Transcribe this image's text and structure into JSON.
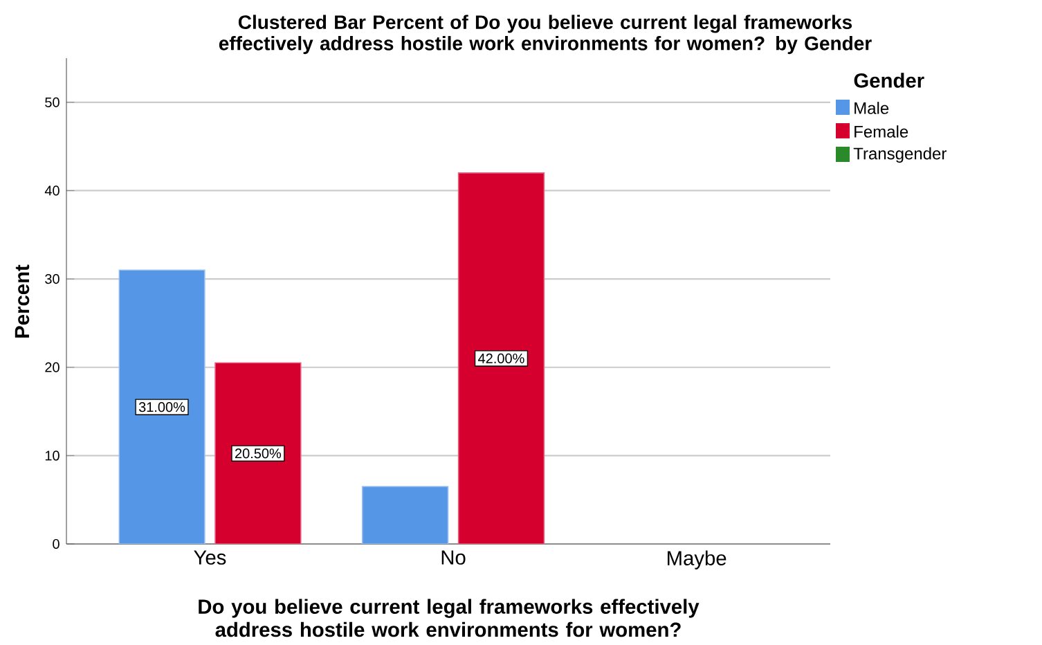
{
  "chart_data": {
    "type": "bar",
    "title": "Clustered Bar Percent of Do you believe current legal frameworks effectively address hostile work environments for women? by Gender",
    "xlabel": "Do you believe current legal frameworks effectively address hostile work environments for women?",
    "ylabel": "Percent",
    "legend_title": "Gender",
    "categories": [
      "Yes",
      "No",
      "Maybe"
    ],
    "series": [
      {
        "name": "Male",
        "color": "#5596e6",
        "values": [
          31,
          6.5,
          null
        ],
        "value_labels": [
          "31.00%",
          null,
          null
        ]
      },
      {
        "name": "Female",
        "color": "#d6002f",
        "values": [
          20.5,
          42,
          null
        ],
        "value_labels": [
          "20.50%",
          "42.00%",
          null
        ]
      },
      {
        "name": "Transgender",
        "color": "#2a8a2a",
        "values": [
          null,
          null,
          null
        ]
      }
    ],
    "ylim": [
      0,
      55
    ],
    "yticks": [
      0,
      10,
      20,
      30,
      40,
      50
    ],
    "grid": "y",
    "legend": "right"
  }
}
